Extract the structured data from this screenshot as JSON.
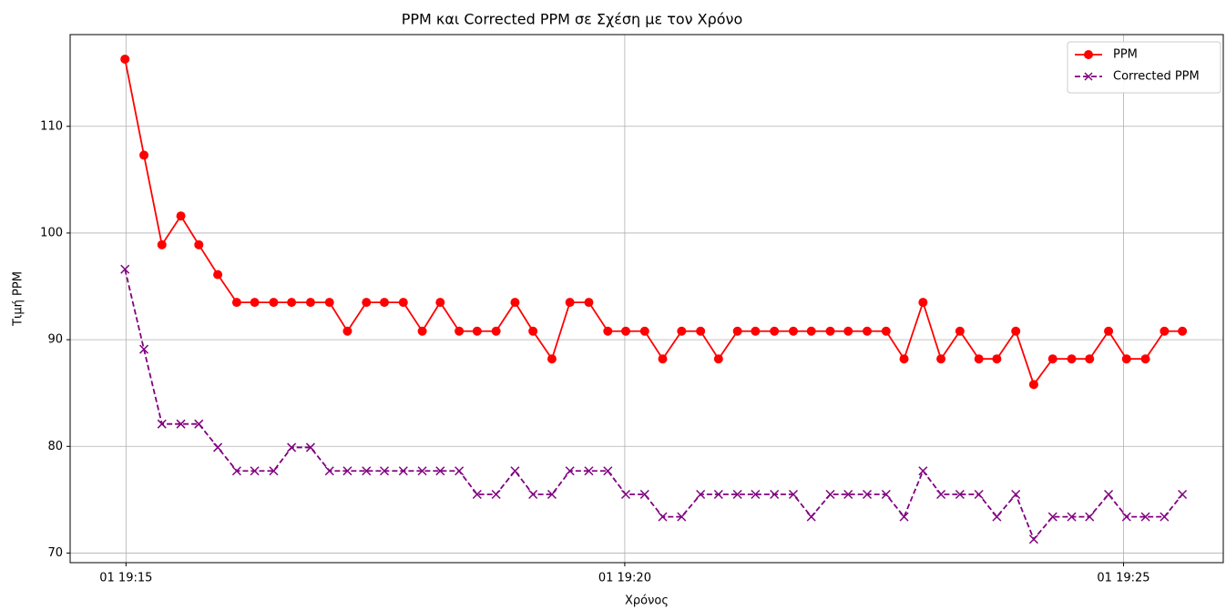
{
  "chart_data": {
    "type": "line",
    "title": "PPM και Corrected PPM σε Σχέση με τον Χρόνο",
    "x_label": "Χρόνος",
    "y_label": "Τιμή PPM",
    "x": [
      1154.99,
      1155.18,
      1155.36,
      1155.55,
      1155.73,
      1155.92,
      1156.11,
      1156.29,
      1156.48,
      1156.66,
      1156.85,
      1157.04,
      1157.22,
      1157.41,
      1157.59,
      1157.78,
      1157.97,
      1158.15,
      1158.34,
      1158.52,
      1158.71,
      1158.9,
      1159.08,
      1159.27,
      1159.45,
      1159.64,
      1159.83,
      1160.01,
      1160.2,
      1160.38,
      1160.57,
      1160.76,
      1160.94,
      1161.13,
      1161.31,
      1161.5,
      1161.69,
      1161.87,
      1162.06,
      1162.24,
      1162.43,
      1162.62,
      1162.8,
      1162.99,
      1163.17,
      1163.36,
      1163.55,
      1163.73,
      1163.92,
      1164.1,
      1164.29,
      1164.48,
      1164.66,
      1164.85,
      1165.03,
      1165.22,
      1165.41,
      1165.59
    ],
    "series": [
      {
        "name": "PPM",
        "color": "#ff0000",
        "marker": "o",
        "dash": "solid",
        "values": [
          116.3,
          107.3,
          98.9,
          101.6,
          98.9,
          96.1,
          93.5,
          93.5,
          93.5,
          93.5,
          93.5,
          93.5,
          90.8,
          93.5,
          93.5,
          93.5,
          90.8,
          93.5,
          90.8,
          90.8,
          90.8,
          93.5,
          90.8,
          88.2,
          93.5,
          93.5,
          90.8,
          90.8,
          90.8,
          88.2,
          90.8,
          90.8,
          88.2,
          90.8,
          90.8,
          90.8,
          90.8,
          90.8,
          90.8,
          90.8,
          90.8,
          90.8,
          88.2,
          93.5,
          88.2,
          90.8,
          88.2,
          88.2,
          90.8,
          85.8,
          88.2,
          88.2,
          88.2,
          90.8,
          88.2,
          88.2,
          90.8,
          90.8
        ]
      },
      {
        "name": "Corrected PPM",
        "color": "#800080",
        "marker": "x",
        "dash": "dashed",
        "values": [
          96.6,
          89.1,
          82.1,
          82.1,
          82.1,
          79.9,
          77.7,
          77.7,
          77.7,
          79.9,
          79.9,
          77.7,
          77.7,
          77.7,
          77.7,
          77.7,
          77.7,
          77.7,
          77.7,
          75.5,
          75.5,
          77.7,
          75.5,
          75.5,
          77.7,
          77.7,
          77.7,
          75.5,
          75.5,
          73.4,
          73.4,
          75.5,
          75.5,
          75.5,
          75.5,
          75.5,
          75.5,
          73.4,
          75.5,
          75.5,
          75.5,
          75.5,
          73.4,
          77.7,
          75.5,
          75.5,
          75.5,
          73.4,
          75.5,
          71.3,
          73.4,
          73.4,
          73.4,
          75.5,
          73.4,
          73.4,
          73.4,
          75.5
        ]
      }
    ],
    "xlim": [
      1154.44,
      1166.0
    ],
    "xticks": [
      {
        "value": 1155,
        "label": "01 19:15"
      },
      {
        "value": 1160,
        "label": "01 19:20"
      },
      {
        "value": 1165,
        "label": "01 19:25"
      }
    ],
    "ylim": [
      69.1,
      118.6
    ],
    "yticks": [
      70,
      80,
      90,
      100,
      110
    ],
    "grid": true,
    "legend": "upper right"
  }
}
